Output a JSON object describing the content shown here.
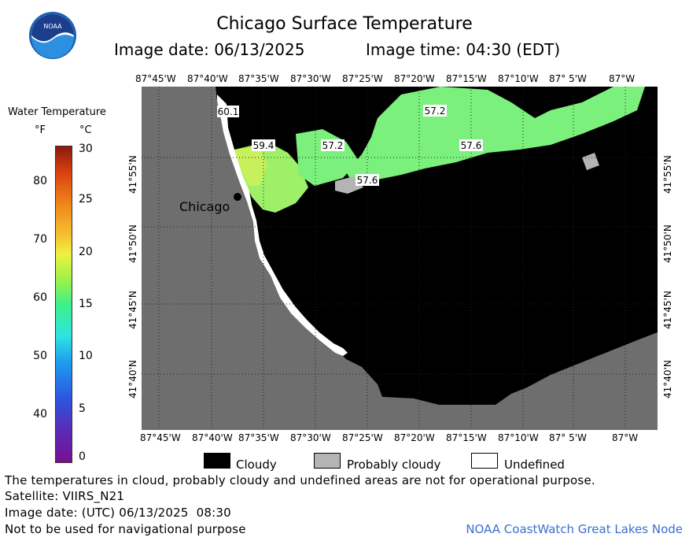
{
  "header": {
    "title": "Chicago Surface Temperature",
    "image_date": "Image date: 06/13/2025",
    "image_time": "Image time: 04:30 (EDT)"
  },
  "colorbar": {
    "title": "Water Temperature",
    "unit_f": "°F",
    "unit_c": "°C",
    "f_ticks": [
      "80",
      "70",
      "60",
      "50",
      "40"
    ],
    "c_ticks": [
      "30",
      "25",
      "20",
      "15",
      "10",
      "5",
      "0"
    ]
  },
  "map": {
    "city_label": "Chicago",
    "lon_labels": [
      "87°45'W",
      "87°40'W",
      "87°35'W",
      "87°30'W",
      "87°25'W",
      "87°20'W",
      "87°15'W",
      "87°10'W",
      "87° 5'W",
      "87°W"
    ],
    "lat_labels": [
      "41°55'N",
      "41°50'N",
      "41°45'N",
      "41°40'N"
    ],
    "contour_labels": [
      "60.1",
      "59.4",
      "57.2",
      "57.2",
      "57.6",
      "57.6"
    ],
    "colors": {
      "land": "#6e6e6e",
      "cloud": "#000000",
      "probably_cloudy": "#b4b4b4",
      "undefined": "#ffffff",
      "water_green": "#7cf07c",
      "water_warm": "#b6f05a"
    }
  },
  "legend": {
    "cloudy": "Cloudy",
    "probably_cloudy": "Probably cloudy",
    "undefined": "Undefined"
  },
  "footer": {
    "disclaimer": "The temperatures in cloud, probably cloudy and undefined areas are not for operational purpose.",
    "satellite": "Satellite: VIIRS_N21",
    "utc_date": "Image date: (UTC) 06/13/2025  08:30",
    "navigation": "Not to be used for navigational purpose",
    "credit": "NOAA CoastWatch Great Lakes Node"
  }
}
